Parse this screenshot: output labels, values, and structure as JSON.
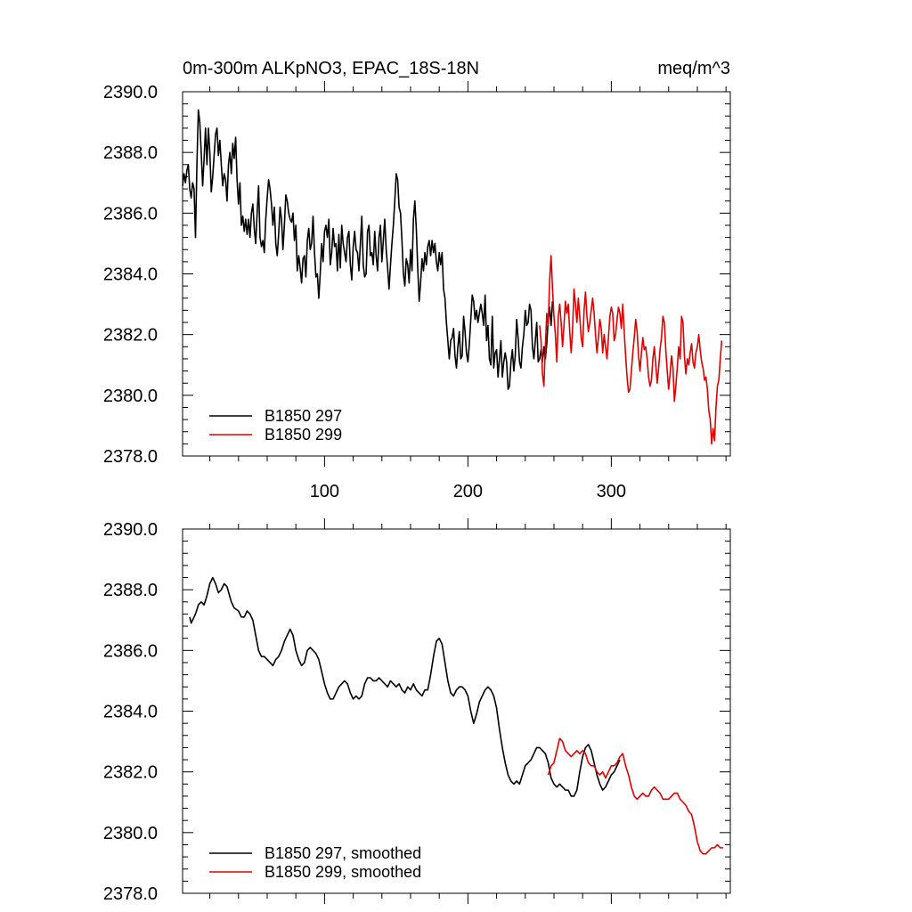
{
  "chart_data": [
    {
      "type": "line",
      "title_left": "0m-300m ALKpNO3, EPAC_18S-18N",
      "title_right": "meq/m^3",
      "xlabel": "",
      "ylabel": "",
      "xlim": [
        1,
        383
      ],
      "ylim": [
        2378,
        2390
      ],
      "y_ticks": [
        2378,
        2380,
        2382,
        2384,
        2386,
        2388,
        2390
      ],
      "y_tick_labels": [
        "2378.0",
        "2380.0",
        "2382.0",
        "2384.0",
        "2386.0",
        "2388.0",
        "2390.0"
      ],
      "x_ticks": [
        100,
        200,
        300
      ],
      "x_tick_labels": [
        "100",
        "200",
        "300"
      ],
      "legend_position": "bottom-left",
      "series": [
        {
          "name": "B1850 297",
          "color": "#000000",
          "x_start": 1,
          "values": [
            2386.9,
            2387.3,
            2387.0,
            2387.4,
            2387.6,
            2386.8,
            2386.5,
            2387.0,
            2386.8,
            2385.2,
            2387.6,
            2389.4,
            2389.0,
            2388.0,
            2386.9,
            2387.8,
            2388.8,
            2387.6,
            2388.8,
            2388.0,
            2386.7,
            2387.2,
            2387.9,
            2388.6,
            2388.8,
            2387.9,
            2388.4,
            2387.6,
            2386.9,
            2387.3,
            2387.1,
            2386.4,
            2387.6,
            2388.0,
            2387.3,
            2388.3,
            2387.8,
            2388.5,
            2387.1,
            2386.3,
            2387.0,
            2385.6,
            2385.9,
            2385.4,
            2385.8,
            2385.3,
            2385.8,
            2385.2,
            2386.0,
            2386.3,
            2385.5,
            2385.0,
            2386.0,
            2386.9,
            2385.2,
            2384.9,
            2385.1,
            2384.7,
            2385.8,
            2386.5,
            2387.1,
            2386.8,
            2386.3,
            2385.6,
            2386.2,
            2385.0,
            2384.6,
            2385.3,
            2386.2,
            2385.8,
            2384.8,
            2385.6,
            2386.6,
            2386.4,
            2386.0,
            2385.8,
            2385.7,
            2386.0,
            2385.1,
            2385.6,
            2384.1,
            2384.6,
            2384.2,
            2383.7,
            2384.5,
            2384.6,
            2383.9,
            2385.1,
            2385.5,
            2384.8,
            2385.0,
            2385.9,
            2384.7,
            2383.9,
            2384.0,
            2383.2,
            2384.0,
            2385.0,
            2384.4,
            2385.4,
            2385.6,
            2385.2,
            2385.8,
            2384.3,
            2384.7,
            2385.5,
            2384.9,
            2385.0,
            2384.1,
            2385.3,
            2384.2,
            2385.6,
            2385.0,
            2384.7,
            2384.4,
            2385.2,
            2385.4,
            2384.3,
            2383.8,
            2384.9,
            2385.4,
            2384.8,
            2384.7,
            2384.1,
            2385.0,
            2385.9,
            2384.3,
            2383.9,
            2384.0,
            2385.4,
            2385.6,
            2384.6,
            2384.7,
            2384.3,
            2385.4,
            2384.6,
            2384.1,
            2385.2,
            2385.6,
            2384.4,
            2385.1,
            2385.8,
            2384.8,
            2384.2,
            2383.5,
            2384.3,
            2385.0,
            2385.6,
            2386.4,
            2387.3,
            2387.1,
            2386.2,
            2386.0,
            2385.1,
            2384.0,
            2383.6,
            2384.5,
            2384.3,
            2383.7,
            2384.8,
            2384.1,
            2385.8,
            2386.4,
            2385.5,
            2384.2,
            2383.1,
            2383.7,
            2384.5,
            2384.1,
            2384.7,
            2384.3,
            2384.9,
            2385.1,
            2384.6,
            2385.1,
            2384.7,
            2385.0,
            2384.4,
            2384.1,
            2384.7,
            2384.3,
            2384.7,
            2383.5,
            2383.2,
            2382.4,
            2381.8,
            2381.2,
            2381.8,
            2381.9,
            2382.2,
            2381.3,
            2380.9,
            2381.6,
            2382.1,
            2381.2,
            2381.3,
            2382.6,
            2382.1,
            2381.4,
            2381.1,
            2381.7,
            2382.5,
            2383.3,
            2383.1,
            2382.5,
            2382.8,
            2382.4,
            2382.7,
            2383.0,
            2382.7,
            2382.3,
            2383.3,
            2381.8,
            2382.3,
            2381.2,
            2381.0,
            2382.6,
            2380.9,
            2381.4,
            2381.5,
            2380.6,
            2381.2,
            2381.8,
            2380.6,
            2381.1,
            2381.4,
            2381.1,
            2380.2,
            2380.3,
            2381.1,
            2381.5,
            2380.8,
            2381.3,
            2382.5,
            2381.9,
            2381.1,
            2380.9,
            2381.6,
            2382.0,
            2382.8,
            2382.3,
            2382.4,
            2383.0,
            2382.8,
            2381.6,
            2381.2,
            2381.8,
            2382.4,
            2381.1,
            2381.2,
            2381.5,
            2381.1,
            2381.6,
            2381.2,
            2381.7,
            2382.5,
            2382.9,
            2382.3,
            2383.1
          ]
        },
        {
          "name": "B1850 299",
          "color": "#e00000",
          "x_start": 250,
          "values": [
            2382.3,
            2381.8,
            2380.7,
            2380.3,
            2381.6,
            2382.7,
            2382.3,
            2383.8,
            2384.6,
            2383.5,
            2382.6,
            2382.0,
            2381.1,
            2382.6,
            2383.0,
            2382.4,
            2381.6,
            2382.3,
            2383.1,
            2382.7,
            2383.0,
            2382.1,
            2381.4,
            2382.2,
            2383.5,
            2383.0,
            2382.4,
            2383.2,
            2382.6,
            2381.9,
            2381.6,
            2382.8,
            2383.4,
            2382.6,
            2382.1,
            2382.4,
            2382.8,
            2383.2,
            2382.7,
            2382.0,
            2381.4,
            2381.9,
            2382.5,
            2382.2,
            2381.4,
            2382.0,
            2381.6,
            2381.2,
            2381.9,
            2382.6,
            2382.9,
            2382.7,
            2381.8,
            2382.0,
            2382.5,
            2382.9,
            2382.7,
            2382.2,
            2383.0,
            2382.1,
            2381.3,
            2380.6,
            2380.1,
            2380.2,
            2380.8,
            2381.4,
            2381.9,
            2382.5,
            2382.1,
            2381.3,
            2380.8,
            2381.4,
            2381.9,
            2381.5,
            2381.6,
            2381.2,
            2380.6,
            2380.3,
            2380.5,
            2381.2,
            2381.6,
            2381.0,
            2380.4,
            2380.9,
            2381.5,
            2381.9,
            2382.6,
            2382.4,
            2381.5,
            2380.8,
            2380.2,
            2380.7,
            2381.3,
            2380.9,
            2379.8,
            2380.3,
            2380.9,
            2381.6,
            2381.2,
            2382.6,
            2382.4,
            2381.3,
            2380.7,
            2381.2,
            2381.0,
            2381.4,
            2381.7,
            2381.1,
            2380.9,
            2381.4,
            2381.6,
            2382.0,
            2381.5,
            2381.1,
            2380.9,
            2380.5,
            2380.6,
            2380.2,
            2379.5,
            2379.2,
            2378.4,
            2378.9,
            2378.5,
            2379.6,
            2380.3,
            2380.5,
            2381.2,
            2381.8
          ]
        }
      ]
    },
    {
      "type": "line",
      "xlabel": "",
      "ylabel": "",
      "xlim": [
        1,
        383
      ],
      "ylim": [
        2378,
        2390
      ],
      "y_ticks": [
        2378,
        2380,
        2382,
        2384,
        2386,
        2388,
        2390
      ],
      "y_tick_labels": [
        "2378.0",
        "2380.0",
        "2382.0",
        "2384.0",
        "2386.0",
        "2388.0",
        "2390.0"
      ],
      "x_ticks": [
        100,
        200,
        300
      ],
      "legend_position": "bottom-left",
      "series": [
        {
          "name": "B1850 297, smoothed",
          "color": "#000000",
          "x": [
            6,
            7,
            10,
            12,
            14,
            16,
            18,
            20,
            22,
            24,
            26,
            28,
            30,
            32,
            35,
            37,
            40,
            42,
            44,
            46,
            48,
            50,
            52,
            54,
            56,
            58,
            60,
            62,
            64,
            66,
            68,
            70,
            72,
            74,
            76,
            78,
            80,
            82,
            84,
            86,
            88,
            90,
            92,
            94,
            96,
            98,
            100,
            102,
            104,
            106,
            108,
            110,
            112,
            114,
            116,
            118,
            120,
            122,
            124,
            126,
            128,
            130,
            132,
            134,
            136,
            138,
            140,
            142,
            144,
            146,
            148,
            150,
            152,
            154,
            156,
            158,
            160,
            162,
            164,
            166,
            168,
            170,
            172,
            174,
            176,
            178,
            180,
            182,
            184,
            186,
            188,
            190,
            192,
            194,
            196,
            198,
            200,
            202,
            204,
            206,
            208,
            210,
            212,
            214,
            216,
            218,
            220,
            222,
            224,
            226,
            228,
            230,
            232,
            234,
            236,
            238,
            240,
            242,
            244,
            246,
            248,
            250,
            252,
            254,
            256,
            258,
            260,
            262,
            264,
            266,
            268,
            270,
            272,
            274,
            276,
            278,
            280,
            282,
            284,
            286,
            288,
            290,
            292,
            294,
            296,
            298,
            300,
            302,
            304,
            306
          ],
          "values": [
            2387.1,
            2386.9,
            2387.2,
            2387.5,
            2387.6,
            2387.5,
            2387.8,
            2388.2,
            2388.4,
            2388.2,
            2387.9,
            2388.0,
            2388.2,
            2388.1,
            2387.6,
            2387.4,
            2387.3,
            2387.1,
            2387.1,
            2387.3,
            2387.2,
            2387.0,
            2386.5,
            2386.0,
            2385.8,
            2385.8,
            2385.7,
            2385.6,
            2385.5,
            2385.7,
            2385.8,
            2386.0,
            2386.3,
            2386.5,
            2386.7,
            2386.5,
            2386.0,
            2385.7,
            2385.5,
            2385.6,
            2386.0,
            2386.1,
            2386.0,
            2385.9,
            2385.7,
            2385.3,
            2384.9,
            2384.6,
            2384.4,
            2384.4,
            2384.6,
            2384.8,
            2384.9,
            2385.0,
            2384.9,
            2384.6,
            2384.4,
            2384.5,
            2384.4,
            2384.5,
            2384.9,
            2385.1,
            2385.1,
            2385.0,
            2385.0,
            2385.1,
            2385.0,
            2384.9,
            2384.8,
            2385.0,
            2384.9,
            2384.8,
            2384.9,
            2384.7,
            2384.6,
            2384.8,
            2384.7,
            2384.9,
            2384.7,
            2384.6,
            2384.5,
            2384.7,
            2384.7,
            2385.2,
            2385.8,
            2386.3,
            2386.4,
            2386.2,
            2385.6,
            2385.0,
            2384.6,
            2384.5,
            2384.7,
            2384.8,
            2384.8,
            2384.7,
            2384.5,
            2384.0,
            2383.6,
            2383.9,
            2384.3,
            2384.5,
            2384.7,
            2384.8,
            2384.7,
            2384.5,
            2384.1,
            2383.4,
            2382.8,
            2382.3,
            2381.9,
            2381.7,
            2381.6,
            2381.7,
            2381.6,
            2381.9,
            2382.2,
            2382.3,
            2382.4,
            2382.6,
            2382.8,
            2382.8,
            2382.7,
            2382.6,
            2382.3,
            2381.8,
            2381.6,
            2381.5,
            2381.6,
            2381.5,
            2381.4,
            2381.4,
            2381.2,
            2381.2,
            2381.4,
            2382.0,
            2382.5,
            2382.8,
            2382.9,
            2382.7,
            2382.3,
            2381.9,
            2381.6,
            2381.4,
            2381.5,
            2381.7,
            2381.9,
            2382.0,
            2382.2,
            2382.4
          ]
        },
        {
          "name": "B1850 299, smoothed",
          "color": "#e00000",
          "x": [
            256,
            258,
            260,
            262,
            264,
            266,
            268,
            270,
            272,
            274,
            276,
            278,
            280,
            282,
            284,
            286,
            288,
            290,
            292,
            294,
            296,
            298,
            300,
            302,
            304,
            306,
            308,
            310,
            312,
            314,
            316,
            318,
            320,
            322,
            324,
            326,
            328,
            330,
            332,
            334,
            336,
            338,
            340,
            342,
            344,
            346,
            348,
            350,
            352,
            354,
            356,
            358,
            360,
            362,
            364,
            366,
            368,
            370,
            372,
            374,
            376,
            378
          ],
          "values": [
            2381.9,
            2382.2,
            2382.3,
            2382.7,
            2383.1,
            2383.0,
            2382.7,
            2382.6,
            2382.5,
            2382.6,
            2382.7,
            2382.6,
            2382.7,
            2382.6,
            2382.3,
            2382.2,
            2382.2,
            2382.0,
            2381.9,
            2382.0,
            2381.8,
            2382.0,
            2382.2,
            2382.2,
            2382.3,
            2382.5,
            2382.6,
            2382.2,
            2381.9,
            2381.5,
            2381.2,
            2381.1,
            2381.2,
            2381.3,
            2381.2,
            2381.2,
            2381.4,
            2381.5,
            2381.4,
            2381.3,
            2381.1,
            2381.1,
            2381.1,
            2381.2,
            2381.3,
            2381.3,
            2381.1,
            2381.0,
            2380.9,
            2380.7,
            2380.6,
            2380.2,
            2379.7,
            2379.4,
            2379.3,
            2379.3,
            2379.4,
            2379.5,
            2379.5,
            2379.6,
            2379.5,
            2379.5
          ]
        }
      ]
    }
  ]
}
